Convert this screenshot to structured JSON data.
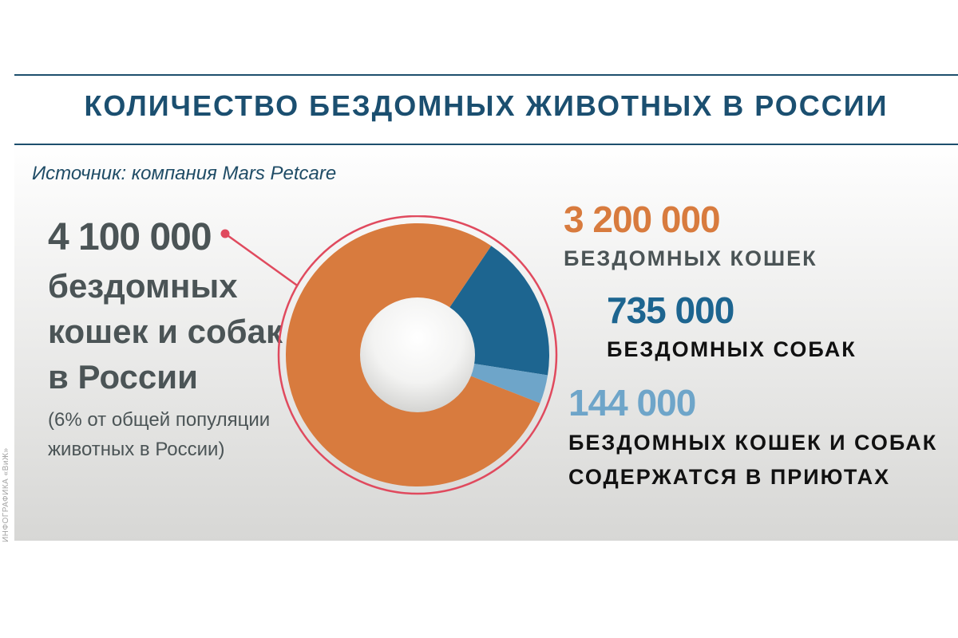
{
  "title": "КОЛИЧЕСТВО БЕЗДОМНЫХ ЖИВОТНЫХ В РОССИИ",
  "source": "Источник: компания Mars Petcare",
  "side_credit": "ИНФОГРАФИКА «ВиЖ»",
  "total": {
    "value": "4 100 000",
    "label": "бездомных кошек и собак в России",
    "note": "(6% от общей популяции животных в России)"
  },
  "stats": {
    "cats": {
      "value": "3 200 000",
      "label": "БЕЗДОМНЫХ КОШЕК"
    },
    "dogs": {
      "value": "735 000",
      "label": "БЕЗДОМНЫХ СОБАК"
    },
    "shelters": {
      "value": "144 000",
      "label": "БЕЗДОМНЫХ КОШЕК И СОБАК СОДЕРЖАТСЯ В ПРИЮТАХ"
    }
  },
  "colors": {
    "cats": "#d87b3e",
    "dogs": "#1d6590",
    "shelters": "#6ea5c9",
    "ring": "#e04a5e",
    "title": "#1b4f70"
  },
  "chart_data": {
    "type": "pie",
    "categories": [
      "Бездомные кошки",
      "Бездомные собаки",
      "В приютах"
    ],
    "values": [
      3200000,
      735000,
      144000
    ],
    "total": 4100000
  }
}
